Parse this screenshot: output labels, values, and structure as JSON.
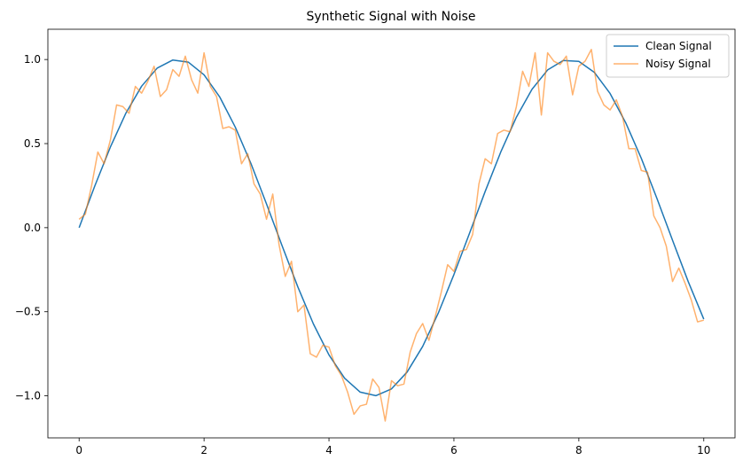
{
  "chart_data": {
    "type": "line",
    "title": "Synthetic Signal with Noise",
    "xlabel": "",
    "ylabel": "",
    "xlim": [
      -0.5,
      10.5
    ],
    "ylim": [
      -1.25,
      1.18
    ],
    "x_ticks": [
      0,
      2,
      4,
      6,
      8,
      10
    ],
    "x_tick_labels": [
      "0",
      "2",
      "4",
      "6",
      "8",
      "10"
    ],
    "y_ticks": [
      -1.0,
      -0.5,
      0.0,
      0.5,
      1.0
    ],
    "y_tick_labels": [
      "−1.0",
      "−0.5",
      "0.0",
      "0.5",
      "1.0"
    ],
    "grid": false,
    "legend_position": "top-right",
    "series": [
      {
        "name": "Clean Signal",
        "color": "#1f77b4",
        "opacity": 1.0,
        "x": [
          0,
          0.25,
          0.5,
          0.75,
          1,
          1.25,
          1.5,
          1.75,
          2,
          2.25,
          2.5,
          2.75,
          3,
          3.25,
          3.5,
          3.75,
          4,
          4.25,
          4.5,
          4.75,
          5,
          5.25,
          5.5,
          5.75,
          6,
          6.25,
          6.5,
          6.75,
          7,
          7.25,
          7.5,
          7.75,
          8,
          8.25,
          8.5,
          8.75,
          9,
          9.25,
          9.5,
          9.75,
          10
        ],
        "values": [
          0.0,
          0.247,
          0.479,
          0.682,
          0.841,
          0.949,
          0.997,
          0.984,
          0.909,
          0.778,
          0.598,
          0.382,
          0.141,
          -0.108,
          -0.351,
          -0.572,
          -0.757,
          -0.895,
          -0.978,
          -0.999,
          -0.959,
          -0.859,
          -0.706,
          -0.508,
          -0.279,
          -0.033,
          0.215,
          0.45,
          0.657,
          0.823,
          0.938,
          0.994,
          0.989,
          0.923,
          0.798,
          0.624,
          0.412,
          0.174,
          -0.075,
          -0.32,
          -0.544
        ]
      },
      {
        "name": "Noisy Signal",
        "color": "#ff7f0e",
        "opacity": 0.6,
        "x": [
          0,
          0.1,
          0.2,
          0.3,
          0.4,
          0.5,
          0.6,
          0.7,
          0.8,
          0.9,
          1.0,
          1.1,
          1.2,
          1.3,
          1.4,
          1.5,
          1.6,
          1.7,
          1.8,
          1.9,
          2.0,
          2.1,
          2.2,
          2.3,
          2.4,
          2.5,
          2.6,
          2.7,
          2.8,
          2.9,
          3.0,
          3.1,
          3.2,
          3.3,
          3.4,
          3.5,
          3.6,
          3.7,
          3.8,
          3.9,
          4.0,
          4.1,
          4.2,
          4.3,
          4.4,
          4.5,
          4.6,
          4.7,
          4.8,
          4.9,
          5.0,
          5.1,
          5.2,
          5.3,
          5.4,
          5.5,
          5.6,
          5.7,
          5.8,
          5.9,
          6.0,
          6.1,
          6.2,
          6.3,
          6.4,
          6.5,
          6.6,
          6.7,
          6.8,
          6.9,
          7.0,
          7.1,
          7.2,
          7.3,
          7.4,
          7.5,
          7.6,
          7.7,
          7.8,
          7.9,
          8.0,
          8.1,
          8.2,
          8.3,
          8.4,
          8.5,
          8.6,
          8.7,
          8.8,
          8.9,
          9.0,
          9.1,
          9.2,
          9.3,
          9.4,
          9.5,
          9.6,
          9.7,
          9.8,
          9.9,
          10.0
        ],
        "values": [
          0.05,
          0.08,
          0.25,
          0.45,
          0.38,
          0.52,
          0.73,
          0.72,
          0.68,
          0.84,
          0.8,
          0.87,
          0.96,
          0.78,
          0.82,
          0.94,
          0.9,
          1.02,
          0.88,
          0.8,
          1.04,
          0.84,
          0.78,
          0.59,
          0.6,
          0.58,
          0.38,
          0.44,
          0.26,
          0.2,
          0.05,
          0.2,
          -0.1,
          -0.29,
          -0.2,
          -0.5,
          -0.46,
          -0.75,
          -0.77,
          -0.7,
          -0.71,
          -0.82,
          -0.88,
          -0.98,
          -1.11,
          -1.06,
          -1.05,
          -0.9,
          -0.95,
          -1.15,
          -0.91,
          -0.94,
          -0.93,
          -0.74,
          -0.63,
          -0.57,
          -0.67,
          -0.53,
          -0.38,
          -0.22,
          -0.26,
          -0.14,
          -0.13,
          -0.04,
          0.26,
          0.41,
          0.38,
          0.56,
          0.58,
          0.57,
          0.72,
          0.93,
          0.84,
          1.04,
          0.67,
          1.04,
          0.99,
          0.97,
          1.02,
          0.79,
          0.96,
          0.99,
          1.06,
          0.81,
          0.73,
          0.7,
          0.76,
          0.66,
          0.47,
          0.47,
          0.34,
          0.33,
          0.07,
          0.0,
          -0.11,
          -0.32,
          -0.24,
          -0.33,
          -0.43,
          -0.56,
          -0.55
        ]
      }
    ]
  }
}
